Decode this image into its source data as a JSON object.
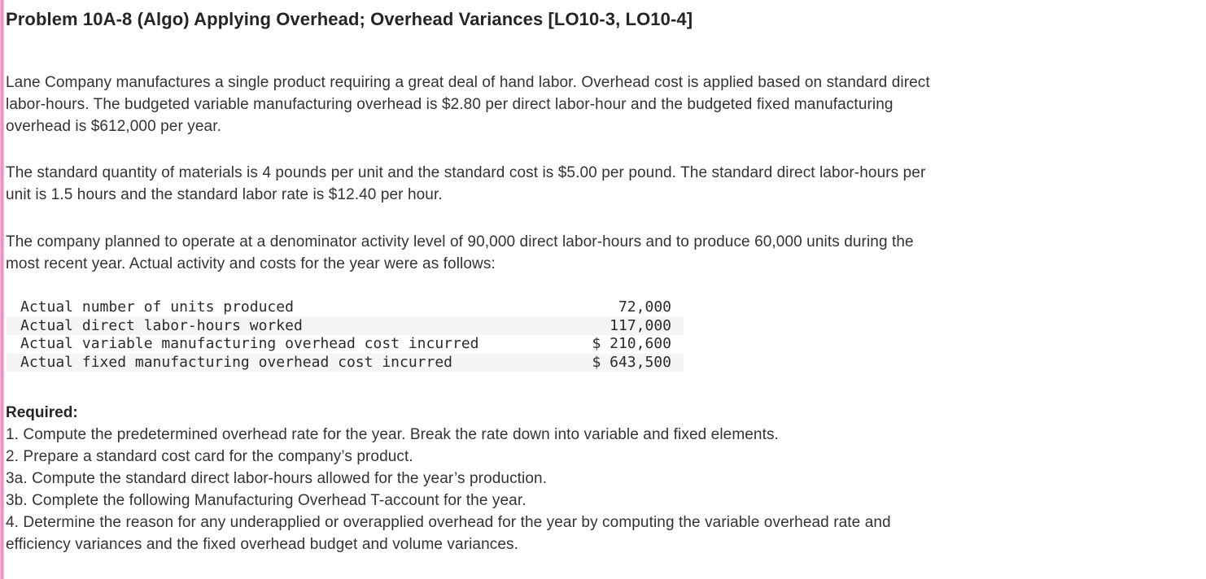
{
  "page": {
    "accent_bar_color": "#ec8ac2",
    "background_color": "#ffffff",
    "stripe_color": "#f5f5f5",
    "text_color": "#333333"
  },
  "header": {
    "title": "Problem 10A-8 (Algo) Applying Overhead; Overhead Variances [LO10-3, LO10-4]"
  },
  "problem": {
    "paragraphs": [
      {
        "text": "Lane Company manufactures a single product requiring a great deal of hand labor. Overhead cost is applied based on standard direct\nlabor-hours. The budgeted variable manufacturing overhead is $2.80 per direct labor-hour and the budgeted fixed manufacturing\noverhead is $612,000 per year."
      },
      {
        "text": "The standard quantity of materials is 4 pounds per unit and the standard cost is $5.00 per pound. The standard direct labor-hours per\nunit is 1.5 hours and the standard labor rate is $12.40 per hour."
      },
      {
        "text": "The company planned to operate at a denominator activity level of 90,000 direct labor-hours and to produce 60,000 units during the\nmost recent year. Actual activity and costs for the year were as follows:"
      }
    ]
  },
  "actuals_table": {
    "rows": [
      {
        "label": "Actual number of units produced",
        "value": "72,000"
      },
      {
        "label": "Actual direct labor-hours worked",
        "value": "117,000"
      },
      {
        "label": "Actual variable manufacturing overhead cost incurred",
        "value": "$ 210,600"
      },
      {
        "label": "Actual fixed manufacturing overhead cost incurred",
        "value": "$ 643,500"
      }
    ]
  },
  "required": {
    "heading": "Required:",
    "items": [
      {
        "text": "1. Compute the predetermined overhead rate for the year. Break the rate down into variable and fixed elements."
      },
      {
        "text": "2. Prepare a standard cost card for the company’s product."
      },
      {
        "text": "3a. Compute the standard direct labor-hours allowed for the year’s production."
      },
      {
        "text": "3b. Complete the following Manufacturing Overhead T-account for the year."
      },
      {
        "text": "4. Determine the reason for any underapplied or overapplied overhead for the year by computing the variable overhead rate and\nefficiency variances and the fixed overhead budget and volume variances."
      }
    ]
  }
}
